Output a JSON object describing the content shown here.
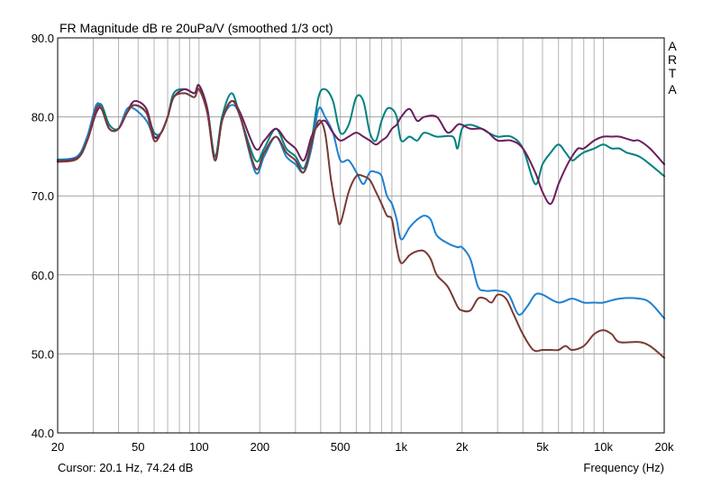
{
  "chart_data": {
    "type": "line",
    "title": "FR Magnitude dB re 20uPa/V (smoothed 1/3 oct)",
    "xlabel": "Frequency (Hz)",
    "ylabel": "",
    "x_scale": "log",
    "xlim": [
      20,
      20000
    ],
    "ylim": [
      40,
      90
    ],
    "grid": true,
    "x_ticks": [
      {
        "value": 20,
        "label": "20"
      },
      {
        "value": 50,
        "label": "50"
      },
      {
        "value": 100,
        "label": "100"
      },
      {
        "value": 200,
        "label": "200"
      },
      {
        "value": 500,
        "label": "500"
      },
      {
        "value": 1000,
        "label": "1k"
      },
      {
        "value": 2000,
        "label": "2k"
      },
      {
        "value": 5000,
        "label": "5k"
      },
      {
        "value": 10000,
        "label": "10k"
      },
      {
        "value": 20000,
        "label": "20k"
      }
    ],
    "y_ticks": [
      {
        "value": 90,
        "label": "90.0"
      },
      {
        "value": 80,
        "label": "80.0"
      },
      {
        "value": 70,
        "label": "70.0"
      },
      {
        "value": 60,
        "label": "60.0"
      },
      {
        "value": 50,
        "label": "50.0"
      },
      {
        "value": 40,
        "label": "40.0"
      }
    ],
    "series": [
      {
        "color": "#008080",
        "points": [
          [
            20,
            74.6
          ],
          [
            25,
            75
          ],
          [
            28,
            77.5
          ],
          [
            31,
            81
          ],
          [
            33,
            81.5
          ],
          [
            36,
            79
          ],
          [
            40,
            78.5
          ],
          [
            44,
            80.5
          ],
          [
            48,
            81.5
          ],
          [
            55,
            80.5
          ],
          [
            60,
            78
          ],
          [
            65,
            78
          ],
          [
            70,
            80
          ],
          [
            75,
            83
          ],
          [
            85,
            83.5
          ],
          [
            95,
            83
          ],
          [
            100,
            84
          ],
          [
            110,
            81
          ],
          [
            120,
            75
          ],
          [
            130,
            80
          ],
          [
            145,
            83
          ],
          [
            160,
            80
          ],
          [
            190,
            74.5
          ],
          [
            210,
            76
          ],
          [
            240,
            78.5
          ],
          [
            270,
            76
          ],
          [
            300,
            75
          ],
          [
            330,
            73.5
          ],
          [
            360,
            77
          ],
          [
            390,
            82.5
          ],
          [
            420,
            83.5
          ],
          [
            460,
            82
          ],
          [
            500,
            78
          ],
          [
            550,
            79
          ],
          [
            600,
            82.5
          ],
          [
            650,
            82
          ],
          [
            700,
            78
          ],
          [
            750,
            77
          ],
          [
            800,
            79.5
          ],
          [
            850,
            81
          ],
          [
            900,
            81
          ],
          [
            950,
            80
          ],
          [
            1000,
            77
          ],
          [
            1100,
            77.5
          ],
          [
            1200,
            77
          ],
          [
            1300,
            78
          ],
          [
            1500,
            77.5
          ],
          [
            1800,
            77.5
          ],
          [
            1900,
            76
          ],
          [
            2000,
            78.5
          ],
          [
            2200,
            79
          ],
          [
            2500,
            78.5
          ],
          [
            2700,
            78
          ],
          [
            3000,
            77.5
          ],
          [
            3500,
            77.5
          ],
          [
            4000,
            76
          ],
          [
            4600,
            71.5
          ],
          [
            5000,
            74
          ],
          [
            5500,
            75.5
          ],
          [
            6000,
            76.5
          ],
          [
            6500,
            75.5
          ],
          [
            7000,
            74.5
          ],
          [
            7500,
            75
          ],
          [
            8000,
            75.5
          ],
          [
            9000,
            76
          ],
          [
            10000,
            76.5
          ],
          [
            11000,
            76
          ],
          [
            12000,
            76
          ],
          [
            13000,
            75.5
          ],
          [
            15000,
            75
          ],
          [
            17000,
            74
          ],
          [
            20000,
            72.5
          ]
        ]
      },
      {
        "color": "#1f80d0",
        "points": [
          [
            20,
            74.5
          ],
          [
            25,
            75
          ],
          [
            28,
            77.5
          ],
          [
            31,
            81.5
          ],
          [
            33,
            81
          ],
          [
            36,
            78.5
          ],
          [
            40,
            78.5
          ],
          [
            44,
            81
          ],
          [
            48,
            81
          ],
          [
            55,
            79.5
          ],
          [
            60,
            77.5
          ],
          [
            65,
            78
          ],
          [
            70,
            80
          ],
          [
            75,
            82.5
          ],
          [
            85,
            83
          ],
          [
            95,
            82.5
          ],
          [
            100,
            83.5
          ],
          [
            110,
            80.5
          ],
          [
            120,
            74.5
          ],
          [
            130,
            79.5
          ],
          [
            145,
            81.5
          ],
          [
            160,
            80
          ],
          [
            190,
            73
          ],
          [
            210,
            75
          ],
          [
            240,
            77.5
          ],
          [
            270,
            75
          ],
          [
            300,
            74
          ],
          [
            330,
            73
          ],
          [
            360,
            76
          ],
          [
            390,
            81
          ],
          [
            420,
            80
          ],
          [
            460,
            78
          ],
          [
            500,
            74.5
          ],
          [
            550,
            74.5
          ],
          [
            600,
            73
          ],
          [
            650,
            71.5
          ],
          [
            700,
            73
          ],
          [
            750,
            73
          ],
          [
            800,
            72.5
          ],
          [
            850,
            70
          ],
          [
            900,
            69
          ],
          [
            950,
            67
          ],
          [
            1000,
            64.5
          ],
          [
            1100,
            66
          ],
          [
            1200,
            67
          ],
          [
            1300,
            67.5
          ],
          [
            1400,
            67
          ],
          [
            1500,
            65
          ],
          [
            1700,
            64
          ],
          [
            1900,
            63.5
          ],
          [
            2000,
            63.5
          ],
          [
            2200,
            62
          ],
          [
            2400,
            58.5
          ],
          [
            2600,
            58
          ],
          [
            2800,
            58
          ],
          [
            3000,
            58
          ],
          [
            3400,
            57.5
          ],
          [
            3800,
            55
          ],
          [
            4200,
            56
          ],
          [
            4600,
            57.5
          ],
          [
            5000,
            57.5
          ],
          [
            6000,
            56.5
          ],
          [
            7000,
            57
          ],
          [
            8000,
            56.5
          ],
          [
            9000,
            56.5
          ],
          [
            10000,
            56.5
          ],
          [
            12000,
            57
          ],
          [
            15000,
            57
          ],
          [
            17000,
            56.5
          ],
          [
            20000,
            54.5
          ]
        ]
      },
      {
        "color": "#6b1e5e",
        "points": [
          [
            20,
            74.4
          ],
          [
            25,
            74.8
          ],
          [
            28,
            77
          ],
          [
            31,
            80.5
          ],
          [
            33,
            81
          ],
          [
            36,
            78.5
          ],
          [
            40,
            78.5
          ],
          [
            44,
            80.5
          ],
          [
            48,
            82
          ],
          [
            55,
            81
          ],
          [
            60,
            77.5
          ],
          [
            65,
            78
          ],
          [
            70,
            80
          ],
          [
            75,
            82.5
          ],
          [
            85,
            83.5
          ],
          [
            95,
            83
          ],
          [
            100,
            84
          ],
          [
            110,
            81
          ],
          [
            120,
            74.5
          ],
          [
            130,
            79.5
          ],
          [
            145,
            82
          ],
          [
            160,
            80.5
          ],
          [
            190,
            76
          ],
          [
            210,
            77
          ],
          [
            240,
            78.5
          ],
          [
            270,
            77
          ],
          [
            300,
            76
          ],
          [
            330,
            74.5
          ],
          [
            360,
            77.5
          ],
          [
            390,
            79
          ],
          [
            420,
            79.5
          ],
          [
            460,
            78
          ],
          [
            500,
            77
          ],
          [
            550,
            77.5
          ],
          [
            600,
            78
          ],
          [
            650,
            77.5
          ],
          [
            700,
            77
          ],
          [
            750,
            76.5
          ],
          [
            800,
            77
          ],
          [
            850,
            77.5
          ],
          [
            900,
            78.5
          ],
          [
            950,
            79
          ],
          [
            1000,
            80
          ],
          [
            1100,
            81
          ],
          [
            1200,
            79.5
          ],
          [
            1300,
            80
          ],
          [
            1500,
            80
          ],
          [
            1700,
            78
          ],
          [
            1900,
            79
          ],
          [
            2000,
            79
          ],
          [
            2200,
            78.5
          ],
          [
            2500,
            78.5
          ],
          [
            2700,
            78
          ],
          [
            3000,
            77
          ],
          [
            3500,
            77
          ],
          [
            4000,
            76
          ],
          [
            4600,
            73
          ],
          [
            5000,
            70.5
          ],
          [
            5500,
            69
          ],
          [
            6000,
            71.5
          ],
          [
            6500,
            73.5
          ],
          [
            7000,
            75
          ],
          [
            7500,
            76
          ],
          [
            8000,
            76
          ],
          [
            9000,
            77
          ],
          [
            10000,
            77.5
          ],
          [
            11000,
            77.5
          ],
          [
            12000,
            77.5
          ],
          [
            14000,
            77
          ],
          [
            15000,
            77
          ],
          [
            17000,
            76
          ],
          [
            20000,
            74
          ]
        ]
      },
      {
        "color": "#7a3a34",
        "points": [
          [
            20,
            74.3
          ],
          [
            25,
            74.7
          ],
          [
            28,
            77
          ],
          [
            31,
            81
          ],
          [
            33,
            81
          ],
          [
            36,
            78.5
          ],
          [
            40,
            78.5
          ],
          [
            44,
            80.5
          ],
          [
            48,
            81.5
          ],
          [
            55,
            80.5
          ],
          [
            60,
            77
          ],
          [
            65,
            78
          ],
          [
            70,
            80
          ],
          [
            75,
            82.5
          ],
          [
            85,
            83
          ],
          [
            95,
            82.5
          ],
          [
            100,
            83.5
          ],
          [
            110,
            80.5
          ],
          [
            120,
            74.5
          ],
          [
            130,
            79.5
          ],
          [
            145,
            82
          ],
          [
            160,
            80
          ],
          [
            190,
            73.5
          ],
          [
            210,
            75.5
          ],
          [
            240,
            77.5
          ],
          [
            270,
            75.5
          ],
          [
            300,
            74.5
          ],
          [
            330,
            73
          ],
          [
            360,
            76.5
          ],
          [
            390,
            79.5
          ],
          [
            420,
            78
          ],
          [
            450,
            72
          ],
          [
            480,
            68
          ],
          [
            500,
            66.5
          ],
          [
            550,
            70.5
          ],
          [
            600,
            72.5
          ],
          [
            650,
            72.5
          ],
          [
            700,
            72
          ],
          [
            750,
            70.5
          ],
          [
            800,
            69
          ],
          [
            850,
            67.5
          ],
          [
            900,
            67
          ],
          [
            950,
            63.5
          ],
          [
            1000,
            61.5
          ],
          [
            1100,
            62.5
          ],
          [
            1200,
            63
          ],
          [
            1300,
            63
          ],
          [
            1400,
            62
          ],
          [
            1500,
            60
          ],
          [
            1700,
            58.5
          ],
          [
            1900,
            56
          ],
          [
            2000,
            55.5
          ],
          [
            2200,
            55.5
          ],
          [
            2400,
            57
          ],
          [
            2600,
            57
          ],
          [
            2800,
            56.5
          ],
          [
            3000,
            57.5
          ],
          [
            3300,
            57
          ],
          [
            3600,
            55
          ],
          [
            4000,
            52.5
          ],
          [
            4500,
            50.5
          ],
          [
            5000,
            50.5
          ],
          [
            5500,
            50.5
          ],
          [
            6000,
            50.5
          ],
          [
            6500,
            51
          ],
          [
            7000,
            50.5
          ],
          [
            8000,
            51
          ],
          [
            9000,
            52.5
          ],
          [
            10000,
            53
          ],
          [
            11000,
            52.5
          ],
          [
            12000,
            51.5
          ],
          [
            15000,
            51.5
          ],
          [
            17000,
            51
          ],
          [
            20000,
            49.5
          ]
        ]
      }
    ]
  },
  "side_label": [
    "A",
    "R",
    "T",
    "A"
  ],
  "cursor_readout": "Cursor: 20.1 Hz, 74.24 dB"
}
